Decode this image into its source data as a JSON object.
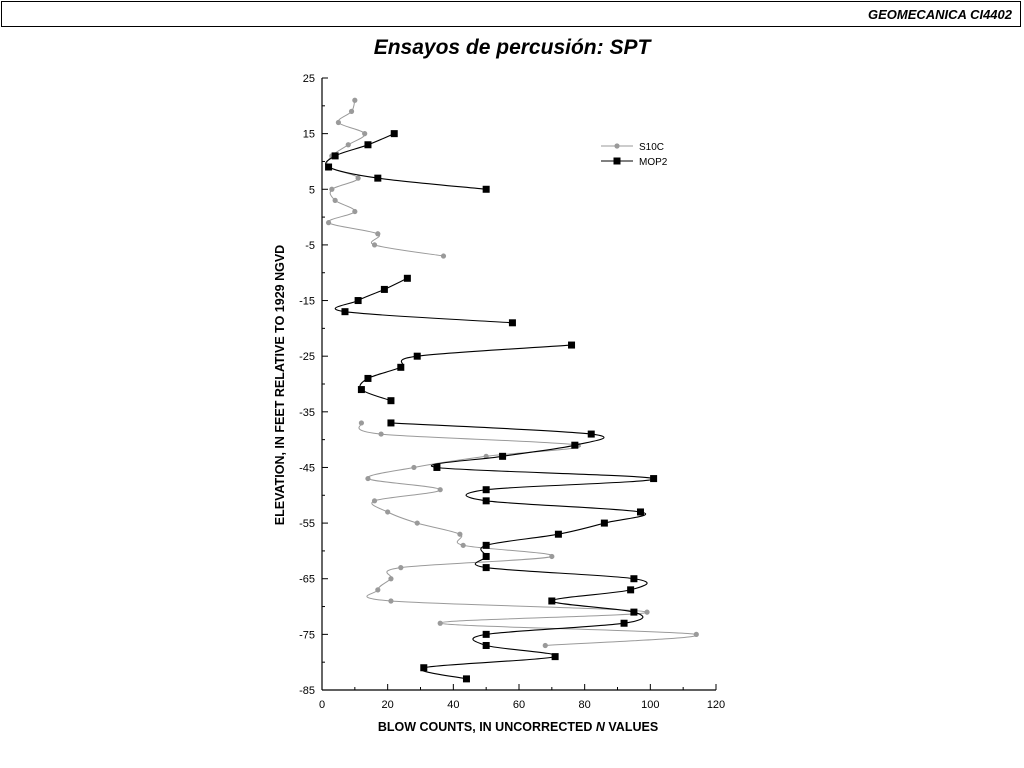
{
  "header": {
    "course": "GEOMECANICA CI4402",
    "title": "Ensayos de percusión: SPT"
  },
  "chart_data": {
    "type": "line",
    "xlabel": "BLOW COUNTS, IN UNCORRECTED N VALUES",
    "xlabel_prefix": "BLOW COUNTS, IN UNCORRECTED ",
    "xlabel_italic": "N",
    "xlabel_suffix": " VALUES",
    "ylabel": "ELEVATION, IN FEET RELATIVE TO 1929 NGVD",
    "xlim": [
      0,
      120
    ],
    "ylim": [
      -85,
      25
    ],
    "xticks": [
      "0",
      "20",
      "40",
      "60",
      "80",
      "100",
      "120"
    ],
    "yticks": [
      "25",
      "15",
      "5",
      "-5",
      "-15",
      "-25",
      "-35",
      "-45",
      "-55",
      "-65",
      "-75",
      "-85"
    ],
    "grid": false,
    "legend_position": "top-right",
    "series": [
      {
        "name": "S10C",
        "color": "#9a9a9a",
        "marker": "circle",
        "points": [
          [
            10,
            21
          ],
          [
            9,
            19
          ],
          [
            5,
            17
          ],
          [
            13,
            15
          ],
          [
            8,
            13
          ],
          [
            3,
            11
          ],
          [
            2,
            9
          ],
          [
            11,
            7
          ],
          [
            3,
            5
          ],
          [
            4,
            3
          ],
          [
            10,
            1
          ],
          [
            2,
            -1
          ],
          [
            17,
            -3
          ],
          [
            16,
            -5
          ],
          [
            37,
            -7
          ],
          [
            12,
            -37
          ],
          [
            18,
            -39
          ],
          [
            78,
            -41
          ],
          [
            50,
            -43
          ],
          [
            28,
            -45
          ],
          [
            14,
            -47
          ],
          [
            36,
            -49
          ],
          [
            16,
            -51
          ],
          [
            20,
            -53
          ],
          [
            29,
            -55
          ],
          [
            42,
            -57
          ],
          [
            43,
            -59
          ],
          [
            70,
            -61
          ],
          [
            24,
            -63
          ],
          [
            21,
            -65
          ],
          [
            17,
            -67
          ],
          [
            21,
            -69
          ],
          [
            99,
            -71
          ],
          [
            36,
            -73
          ],
          [
            114,
            -75
          ],
          [
            68,
            -77
          ]
        ]
      },
      {
        "name": "MOP2",
        "color": "#000000",
        "marker": "square",
        "points": [
          [
            22,
            15
          ],
          [
            14,
            13
          ],
          [
            4,
            11
          ],
          [
            2,
            9
          ],
          [
            17,
            7
          ],
          [
            50,
            5
          ],
          [
            26,
            -11
          ],
          [
            19,
            -13
          ],
          [
            11,
            -15
          ],
          [
            7,
            -17
          ],
          [
            58,
            -19
          ],
          [
            76,
            -23
          ],
          [
            29,
            -25
          ],
          [
            24,
            -27
          ],
          [
            14,
            -29
          ],
          [
            12,
            -31
          ],
          [
            21,
            -33
          ],
          [
            21,
            -37
          ],
          [
            82,
            -39
          ],
          [
            77,
            -41
          ],
          [
            55,
            -43
          ],
          [
            35,
            -45
          ],
          [
            101,
            -47
          ],
          [
            50,
            -49
          ],
          [
            50,
            -51
          ],
          [
            97,
            -53
          ],
          [
            86,
            -55
          ],
          [
            72,
            -57
          ],
          [
            50,
            -59
          ],
          [
            50,
            -61
          ],
          [
            50,
            -63
          ],
          [
            95,
            -65
          ],
          [
            94,
            -67
          ],
          [
            70,
            -69
          ],
          [
            95,
            -71
          ],
          [
            92,
            -73
          ],
          [
            50,
            -75
          ],
          [
            50,
            -77
          ],
          [
            71,
            -79
          ],
          [
            31,
            -81
          ],
          [
            44,
            -83
          ]
        ]
      }
    ]
  }
}
